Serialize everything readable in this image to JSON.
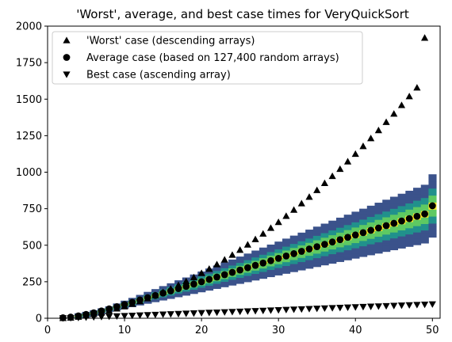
{
  "chart_data": {
    "type": "scatter",
    "title": "'Worst', average, and best case times for VeryQuickSort",
    "xlabel": "",
    "ylabel": "",
    "xlim": [
      0,
      51
    ],
    "ylim": [
      0,
      2000
    ],
    "xticks": [
      0,
      10,
      20,
      30,
      40,
      50
    ],
    "yticks": [
      0,
      250,
      500,
      750,
      1000,
      1250,
      1500,
      1750,
      2000
    ],
    "grid": false,
    "legend_position": "top-left",
    "series": [
      {
        "name": "'Worst' case (descending arrays)",
        "marker": "triangle-up",
        "color": "#000000",
        "x": [
          2,
          3,
          4,
          5,
          6,
          7,
          8,
          9,
          10,
          11,
          12,
          13,
          14,
          15,
          16,
          17,
          18,
          19,
          20,
          21,
          22,
          23,
          24,
          25,
          26,
          27,
          28,
          29,
          30,
          31,
          32,
          33,
          34,
          35,
          36,
          37,
          38,
          39,
          40,
          41,
          42,
          43,
          44,
          45,
          46,
          47,
          48,
          49
        ],
        "y": [
          1,
          4,
          10,
          18,
          28,
          39,
          52,
          66,
          81,
          98,
          116,
          136,
          157,
          179,
          202,
          227,
          253,
          280,
          309,
          338,
          369,
          401,
          434,
          468,
          504,
          541,
          579,
          618,
          658,
          700,
          742,
          786,
          831,
          877,
          925,
          973,
          1022,
          1073,
          1125,
          1178,
          1232,
          1287,
          1343,
          1400,
          1459,
          1519,
          1579,
          1920
        ]
      },
      {
        "name": "Average case (based on 127,400 random arrays)",
        "marker": "circle",
        "color": "#000000",
        "x": [
          2,
          3,
          4,
          5,
          6,
          7,
          8,
          9,
          10,
          11,
          12,
          13,
          14,
          15,
          16,
          17,
          18,
          19,
          20,
          21,
          22,
          23,
          24,
          25,
          26,
          27,
          28,
          29,
          30,
          31,
          32,
          33,
          34,
          35,
          36,
          37,
          38,
          39,
          40,
          41,
          42,
          43,
          44,
          45,
          46,
          47,
          48,
          49,
          50
        ],
        "y": [
          3,
          8,
          16,
          26,
          37,
          50,
          64,
          79,
          94,
          109,
          125,
          141,
          156,
          172,
          187,
          203,
          218,
          234,
          250,
          266,
          282,
          298,
          314,
          330,
          346,
          362,
          378,
          394,
          410,
          426,
          442,
          458,
          474,
          490,
          506,
          522,
          538,
          554,
          570,
          586,
          602,
          618,
          634,
          650,
          666,
          682,
          698,
          714,
          770
        ]
      },
      {
        "name": "Best case (ascending array)",
        "marker": "triangle-down",
        "color": "#000000",
        "x": [
          2,
          3,
          4,
          5,
          6,
          7,
          8,
          9,
          10,
          11,
          12,
          13,
          14,
          15,
          16,
          17,
          18,
          19,
          20,
          21,
          22,
          23,
          24,
          25,
          26,
          27,
          28,
          29,
          30,
          31,
          32,
          33,
          34,
          35,
          36,
          37,
          38,
          39,
          40,
          41,
          42,
          43,
          44,
          45,
          46,
          47,
          48,
          49,
          50
        ],
        "y": [
          1,
          2,
          4,
          6,
          8,
          10,
          12,
          14,
          16,
          18,
          20,
          22,
          24,
          26,
          28,
          30,
          32,
          34,
          36,
          38,
          40,
          42,
          44,
          46,
          48,
          50,
          52,
          54,
          56,
          58,
          60,
          62,
          64,
          66,
          68,
          70,
          72,
          74,
          76,
          78,
          80,
          82,
          84,
          86,
          88,
          90,
          92,
          94,
          96
        ]
      }
    ],
    "heatmap": {
      "description": "density of random-array times, colormap viridis",
      "colormap": [
        "#440154",
        "#3b528b",
        "#21918c",
        "#5ec962",
        "#fde725"
      ]
    }
  }
}
